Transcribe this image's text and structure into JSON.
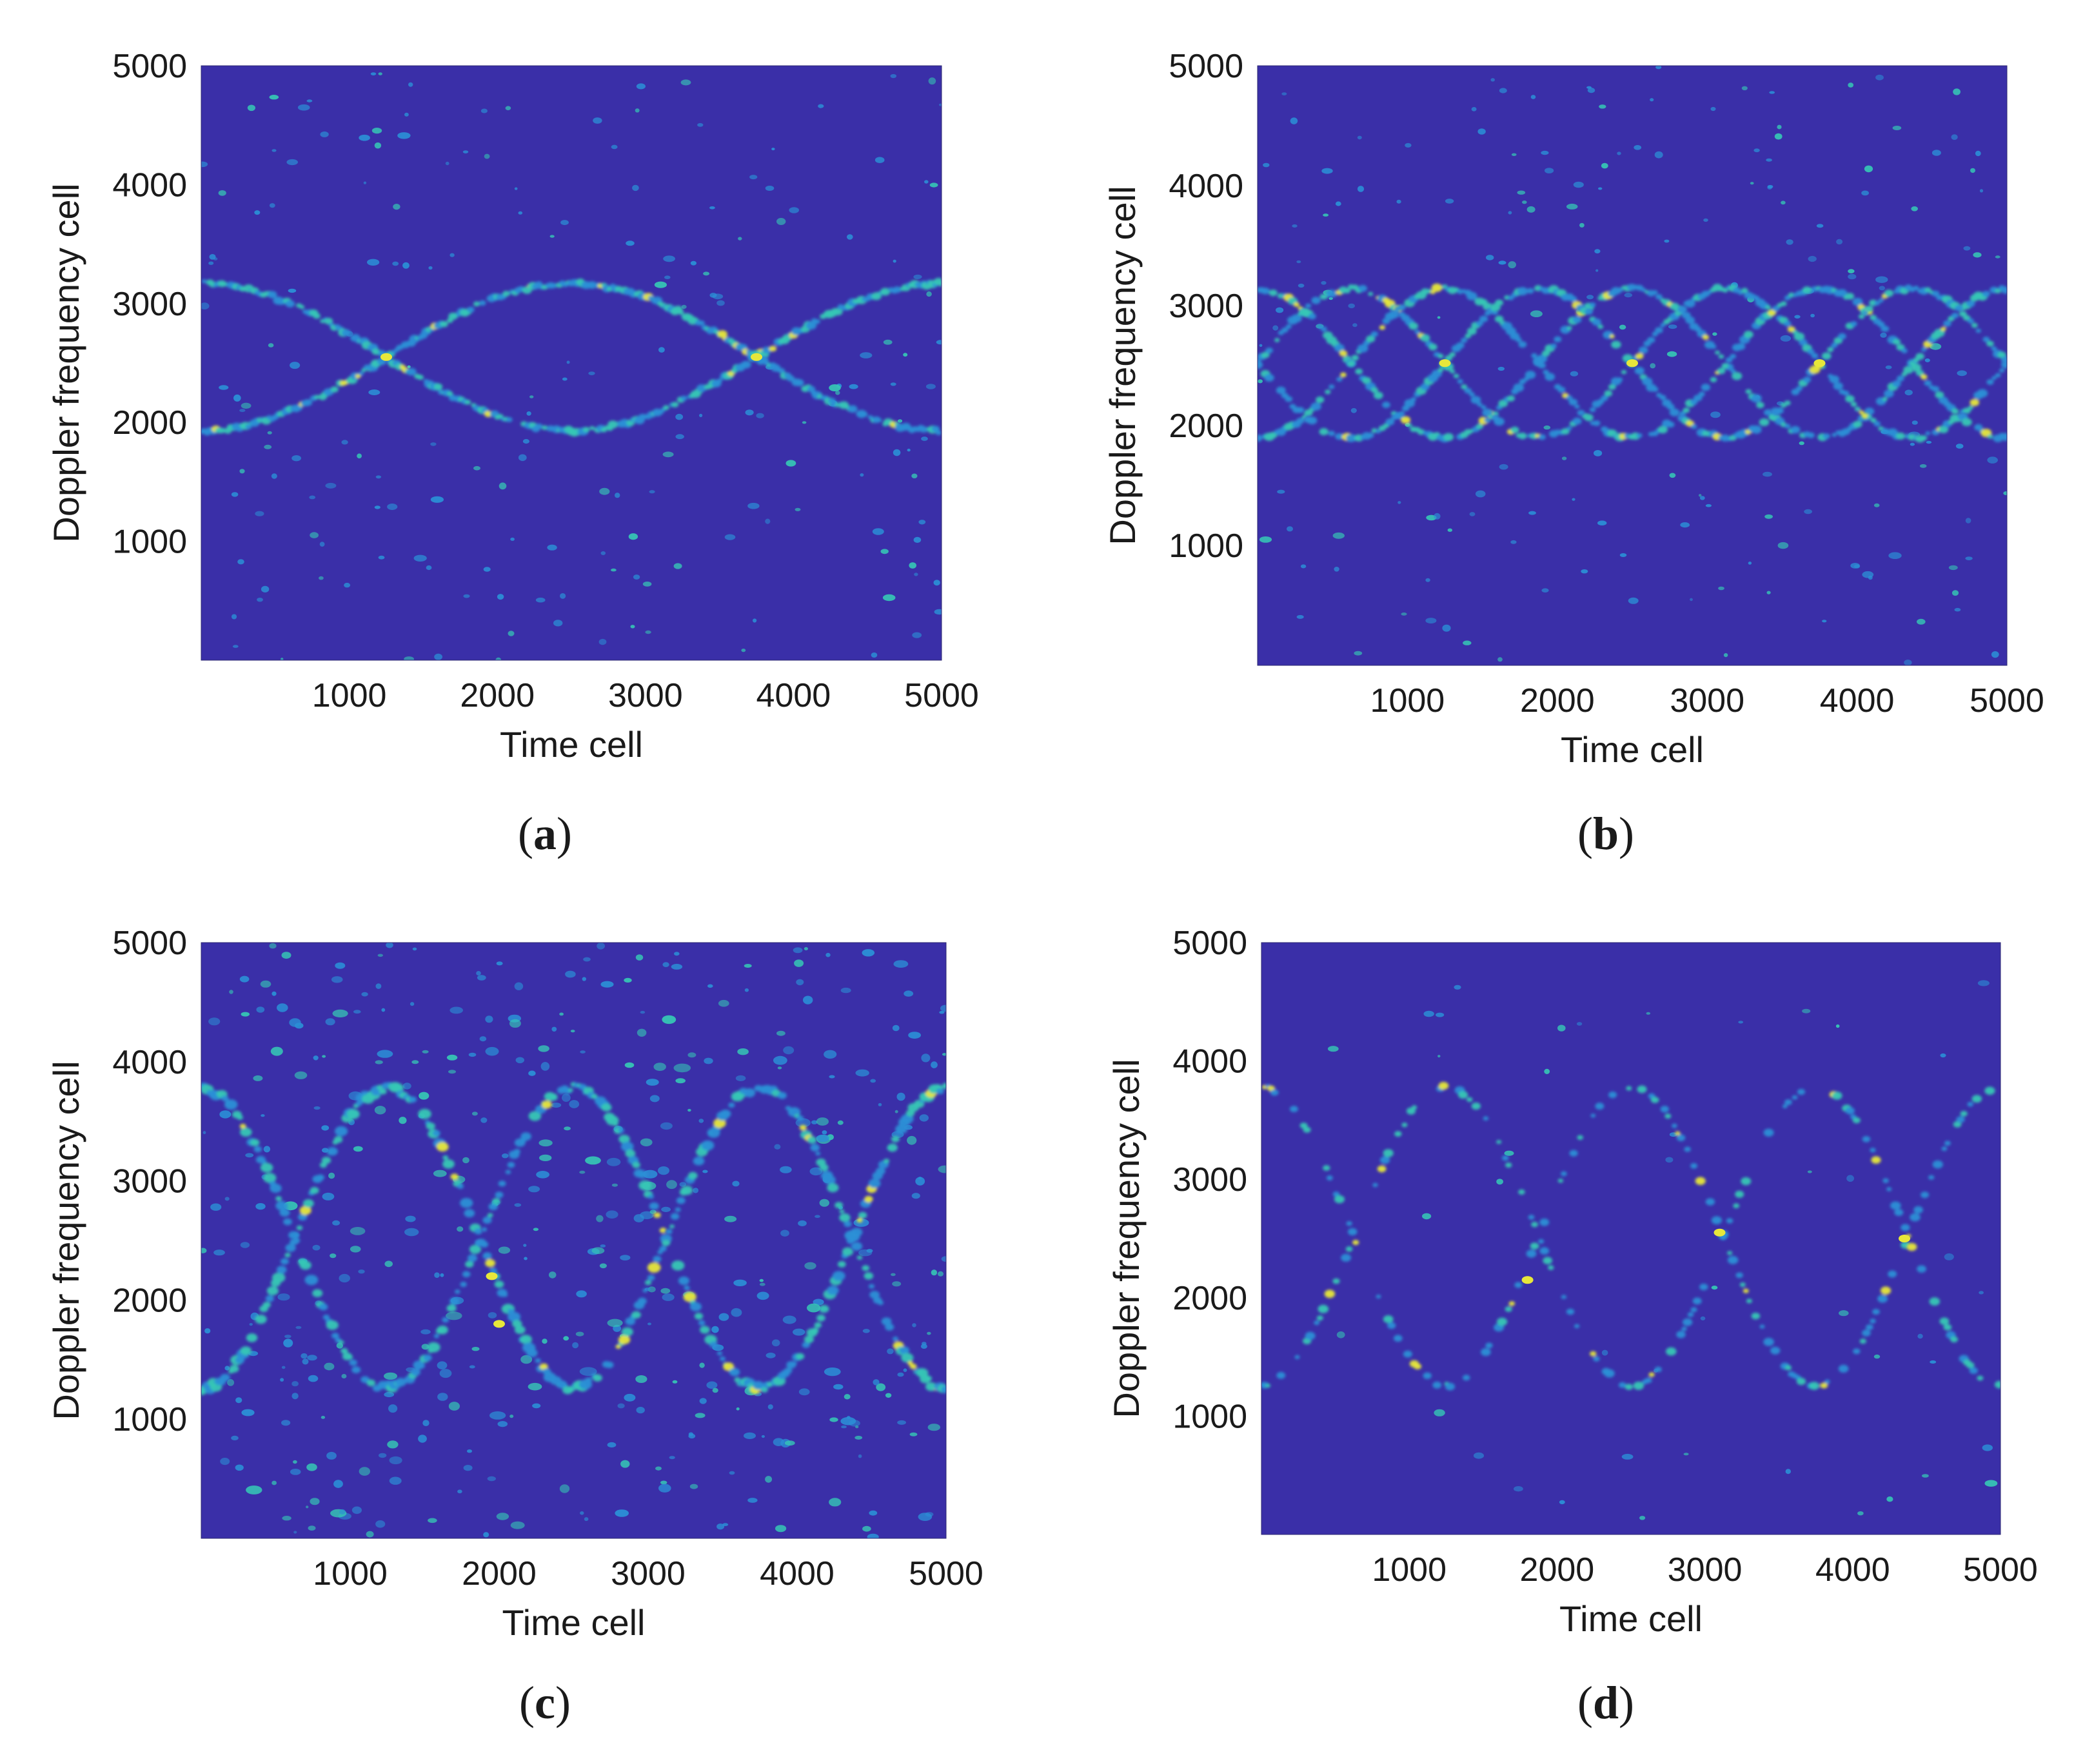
{
  "figure": {
    "colors": {
      "background": "#3a2fa8",
      "trace_low": "#2b8fd6",
      "trace_mid": "#36c7b5",
      "trace_high": "#e7e73a",
      "axis_text": "#1a1a1a"
    }
  },
  "chart_data": [
    {
      "type": "heatmap",
      "panel_label": "a",
      "xlabel": "Time cell",
      "ylabel": "Doppler frequency cell",
      "xlim": [
        0,
        5000
      ],
      "ylim": [
        0,
        5000
      ],
      "xticks": [
        1000,
        2000,
        3000,
        4000,
        5000
      ],
      "yticks": [
        1000,
        2000,
        3000,
        4000,
        5000
      ],
      "colormap": "parula",
      "grid": false,
      "traces": [
        {
          "shape": "sinusoid",
          "center": 2550,
          "amplitude": 620,
          "period": 5000,
          "phase_peak_at": 0
        },
        {
          "shape": "sinusoid",
          "center": 2550,
          "amplitude": 620,
          "period": 5000,
          "phase_peak_at": 2500
        }
      ],
      "bright_crossings": [
        [
          1250,
          2550
        ],
        [
          3750,
          2550
        ]
      ]
    },
    {
      "type": "heatmap",
      "panel_label": "b",
      "xlabel": "Time cell",
      "ylabel": "Doppler frequency cell",
      "xlim": [
        0,
        5000
      ],
      "ylim": [
        0,
        5000
      ],
      "xticks": [
        1000,
        2000,
        3000,
        4000,
        5000
      ],
      "yticks": [
        1000,
        2000,
        3000,
        4000,
        5000
      ],
      "colormap": "parula",
      "grid": false,
      "traces": [
        {
          "shape": "sinusoid",
          "center": 2520,
          "amplitude": 620,
          "period": 2500,
          "phase_peak_at": 0
        },
        {
          "shape": "sinusoid",
          "center": 2520,
          "amplitude": 620,
          "period": 2500,
          "phase_peak_at": 625
        },
        {
          "shape": "sinusoid",
          "center": 2520,
          "amplitude": 620,
          "period": 2500,
          "phase_peak_at": 1250
        },
        {
          "shape": "sinusoid",
          "center": 2520,
          "amplitude": 620,
          "period": 2500,
          "phase_peak_at": 1875
        }
      ],
      "bright_crossings": [
        [
          1250,
          2520
        ],
        [
          2500,
          2520
        ],
        [
          3750,
          2520
        ]
      ]
    },
    {
      "type": "heatmap",
      "panel_label": "c",
      "xlabel": "Time cell",
      "ylabel": "Doppler frequency cell",
      "xlim": [
        0,
        5000
      ],
      "ylim": [
        0,
        5000
      ],
      "xticks": [
        1000,
        2000,
        3000,
        4000,
        5000
      ],
      "yticks": [
        1000,
        2000,
        3000,
        4000,
        5000
      ],
      "colormap": "parula",
      "grid": false,
      "traces": [
        {
          "shape": "sinusoid",
          "center": 2520,
          "amplitude": 1260,
          "period": 2500,
          "phase_peak_at": 0
        },
        {
          "shape": "sinusoid",
          "center": 2520,
          "amplitude": 1260,
          "period": 2500,
          "phase_peak_at": 1250
        }
      ],
      "bright_crossings": [
        [
          1950,
          2200
        ],
        [
          2000,
          1800
        ]
      ]
    },
    {
      "type": "heatmap",
      "panel_label": "d",
      "xlabel": "Time cell",
      "ylabel": "Doppler frequency cell",
      "xlim": [
        0,
        5000
      ],
      "ylim": [
        0,
        5000
      ],
      "xticks": [
        1000,
        2000,
        3000,
        4000,
        5000
      ],
      "yticks": [
        1000,
        2000,
        3000,
        4000,
        5000
      ],
      "colormap": "parula",
      "grid": false,
      "traces": [
        {
          "shape": "sinusoid",
          "center": 2520,
          "amplitude": 1260,
          "period": 2500,
          "phase_peak_at": 0
        },
        {
          "shape": "sinusoid",
          "center": 2520,
          "amplitude": 1260,
          "period": 2500,
          "phase_peak_at": 1250
        }
      ],
      "bright_crossings": [
        [
          1800,
          2150
        ],
        [
          3100,
          2550
        ],
        [
          4350,
          2500
        ]
      ]
    }
  ]
}
